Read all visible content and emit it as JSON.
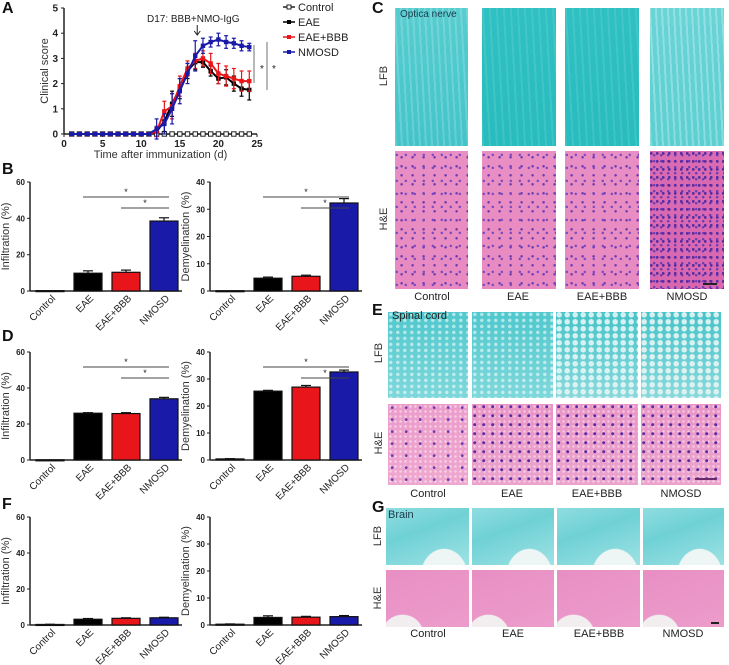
{
  "panels": {
    "A": {
      "label": "A"
    },
    "B": {
      "label": "B"
    },
    "C": {
      "label": "C",
      "tissue": "Optica  nerve"
    },
    "D": {
      "label": "D"
    },
    "E": {
      "label": "E",
      "tissue": "Spinal cord"
    },
    "F": {
      "label": "F"
    },
    "G": {
      "label": "G",
      "tissue": "Brain"
    }
  },
  "histology": {
    "rows": [
      "LFB",
      "H&E"
    ],
    "columns": [
      "Control",
      "EAE",
      "EAE+BBB",
      "NMOSD"
    ]
  },
  "colors": {
    "Control": "#ffffff",
    "EAE": "#000000",
    "EAE+BBB": "#e8161b",
    "NMOSD": "#1a1aa8"
  },
  "chart_data": [
    {
      "id": "A",
      "type": "line",
      "title": "",
      "annotation": "D17: BBB+NMO-IgG",
      "xlabel": "Time after immunization  (d)",
      "ylabel": "Clinical score",
      "xlim": [
        0,
        25
      ],
      "ylim": [
        0,
        5
      ],
      "xticks": [
        0,
        5,
        10,
        15,
        20,
        25
      ],
      "yticks": [
        0,
        1,
        2,
        3,
        4,
        5
      ],
      "legend": [
        "Control",
        "EAE",
        "EAE+BBB",
        "NMOSD"
      ],
      "legend_position": "top-right",
      "significance": [
        "*",
        "*"
      ],
      "x": [
        1,
        2,
        3,
        4,
        5,
        6,
        7,
        8,
        9,
        10,
        11,
        12,
        13,
        14,
        15,
        16,
        17,
        18,
        19,
        20,
        21,
        22,
        23,
        24
      ],
      "series": [
        {
          "name": "Control",
          "values": [
            0,
            0,
            0,
            0,
            0,
            0,
            0,
            0,
            0,
            0,
            0,
            0,
            0,
            0,
            0,
            0,
            0,
            0,
            0,
            0,
            0,
            0,
            0,
            0
          ]
        },
        {
          "name": "EAE",
          "values": [
            0,
            0,
            0,
            0,
            0,
            0,
            0,
            0,
            0,
            0,
            0,
            0.1,
            0.5,
            1.2,
            1.8,
            2.5,
            2.85,
            2.85,
            2.5,
            2.2,
            2.25,
            2.0,
            1.8,
            1.75
          ],
          "error": [
            0,
            0,
            0,
            0,
            0,
            0,
            0,
            0,
            0,
            0,
            0,
            0.2,
            0.4,
            0.5,
            0.4,
            0.3,
            0.3,
            0.2,
            0.2,
            0.2,
            0.3,
            0.3,
            0.3,
            0.4
          ]
        },
        {
          "name": "EAE+BBB",
          "values": [
            0,
            0,
            0,
            0,
            0,
            0,
            0,
            0,
            0,
            0,
            0,
            0.1,
            0.9,
            1.1,
            1.9,
            2.6,
            2.9,
            3.0,
            2.8,
            2.4,
            2.3,
            2.2,
            2.1,
            2.1
          ],
          "error": [
            0,
            0,
            0,
            0,
            0,
            0,
            0,
            0,
            0,
            0,
            0,
            0.2,
            0.4,
            0.5,
            0.4,
            0.3,
            0.3,
            0.3,
            0.4,
            0.4,
            0.4,
            0.4,
            0.4,
            0.4
          ]
        },
        {
          "name": "NMOSD",
          "values": [
            0,
            0,
            0,
            0,
            0,
            0,
            0,
            0,
            0,
            0,
            0,
            0.2,
            0.4,
            1.0,
            1.7,
            2.4,
            3.1,
            3.5,
            3.65,
            3.75,
            3.65,
            3.6,
            3.5,
            3.45
          ],
          "error": [
            0,
            0,
            0,
            0,
            0,
            0,
            0,
            0,
            0,
            0,
            0,
            0.4,
            0.4,
            0.6,
            0.5,
            0.4,
            0.6,
            0.3,
            0.2,
            0.25,
            0.25,
            0.2,
            0.2,
            0.15
          ]
        }
      ]
    },
    {
      "id": "B-left",
      "type": "bar",
      "ylabel": "Infiltration (%)",
      "ylim": [
        0,
        60
      ],
      "yticks": [
        0,
        20,
        40,
        60
      ],
      "categories": [
        "Control",
        "EAE",
        "EAE+BBB",
        "NMOSD"
      ],
      "values": [
        0.2,
        9.8,
        10.3,
        38.5
      ],
      "error": [
        0,
        1.3,
        1.2,
        1.8
      ],
      "significance": [
        {
          "from": "EAE",
          "to": "NMOSD",
          "label": "*"
        },
        {
          "from": "EAE+BBB",
          "to": "NMOSD",
          "label": "*"
        }
      ]
    },
    {
      "id": "B-right",
      "type": "bar",
      "ylabel": "Demyelination (%)",
      "ylim": [
        0,
        40
      ],
      "yticks": [
        0,
        10,
        20,
        30,
        40
      ],
      "categories": [
        "Control",
        "EAE",
        "EAE+BBB",
        "NMOSD"
      ],
      "values": [
        0.1,
        4.7,
        5.4,
        32.3
      ],
      "error": [
        0,
        0.4,
        0.4,
        1.6
      ],
      "significance": [
        {
          "from": "EAE",
          "to": "NMOSD",
          "label": "*"
        },
        {
          "from": "EAE+BBB",
          "to": "NMOSD",
          "label": "*"
        }
      ]
    },
    {
      "id": "D-left",
      "type": "bar",
      "ylabel": "Infiltration (%)",
      "ylim": [
        0,
        60
      ],
      "yticks": [
        0,
        20,
        40,
        60
      ],
      "categories": [
        "Control",
        "EAE",
        "EAE+BBB",
        "NMOSD"
      ],
      "values": [
        0.1,
        26.0,
        25.8,
        34.0
      ],
      "error": [
        0,
        0.3,
        0.5,
        0.8
      ],
      "significance": [
        {
          "from": "EAE",
          "to": "NMOSD",
          "label": "*"
        },
        {
          "from": "EAE+BBB",
          "to": "NMOSD",
          "label": "*"
        }
      ]
    },
    {
      "id": "D-right",
      "type": "bar",
      "ylabel": "Demyelination (%)",
      "ylim": [
        0,
        40
      ],
      "yticks": [
        0,
        10,
        20,
        30,
        40
      ],
      "categories": [
        "Control",
        "EAE",
        "EAE+BBB",
        "NMOSD"
      ],
      "values": [
        0.4,
        25.5,
        27.0,
        32.6
      ],
      "error": [
        0.1,
        0.3,
        0.6,
        0.7
      ],
      "significance": [
        {
          "from": "EAE",
          "to": "NMOSD",
          "label": "*"
        },
        {
          "from": "EAE+BBB",
          "to": "NMOSD",
          "label": "*"
        }
      ]
    },
    {
      "id": "F-left",
      "type": "bar",
      "ylabel": "Infiltration (%)",
      "ylim": [
        0,
        60
      ],
      "yticks": [
        0,
        20,
        40,
        60
      ],
      "categories": [
        "Control",
        "EAE",
        "EAE+BBB",
        "NMOSD"
      ],
      "values": [
        0.3,
        3.2,
        3.7,
        4.0
      ],
      "error": [
        0.1,
        0.4,
        0.3,
        0.3
      ],
      "significance": []
    },
    {
      "id": "F-right",
      "type": "bar",
      "ylabel": "Demyelination (%)",
      "ylim": [
        0,
        40
      ],
      "yticks": [
        0,
        10,
        20,
        30,
        40
      ],
      "categories": [
        "Control",
        "EAE",
        "EAE+BBB",
        "NMOSD"
      ],
      "values": [
        0.3,
        2.8,
        2.9,
        3.1
      ],
      "error": [
        0.1,
        0.6,
        0.3,
        0.4
      ],
      "significance": []
    }
  ]
}
